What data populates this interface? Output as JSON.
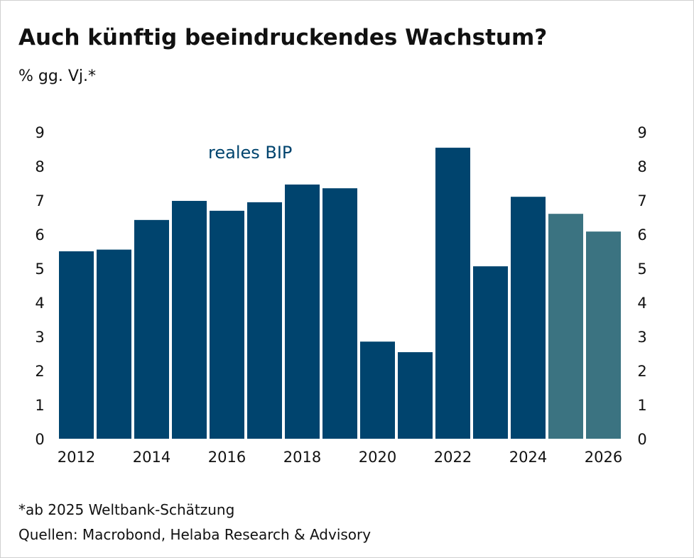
{
  "title": "Auch künftig beeindruckendes Wachstum?",
  "subtitle": "% gg. Vj.*",
  "footnote": "*ab 2025 Weltbank-Schätzung",
  "source": "Quellen: Macrobond, Helaba Research & Advisory",
  "colors": {
    "actual": "#00446e",
    "forecast": "#3b7381"
  },
  "chart_data": {
    "type": "bar",
    "title": "Auch künftig beeindruckendes Wachstum?",
    "ylabel": "% gg. Vj.*",
    "series_label": "reales BIP",
    "categories": [
      "2012",
      "2013",
      "2014",
      "2015",
      "2016",
      "2017",
      "2018",
      "2019",
      "2020",
      "2021",
      "2022",
      "2023",
      "2024",
      "2025",
      "2026"
    ],
    "values": [
      5.5,
      5.55,
      6.42,
      6.98,
      6.69,
      6.94,
      7.46,
      7.35,
      2.85,
      2.54,
      8.54,
      5.06,
      7.1,
      6.6,
      6.08
    ],
    "forecast": [
      false,
      false,
      false,
      false,
      false,
      false,
      false,
      false,
      false,
      false,
      false,
      false,
      false,
      true,
      true
    ],
    "x_tick_labels": [
      "2012",
      "2014",
      "2016",
      "2018",
      "2020",
      "2022",
      "2024",
      "2026"
    ],
    "y_ticks": [
      0,
      1,
      2,
      3,
      4,
      5,
      6,
      7,
      8,
      9
    ],
    "ylim": [
      0,
      9
    ],
    "grid": false,
    "dual_y_axis": true
  }
}
